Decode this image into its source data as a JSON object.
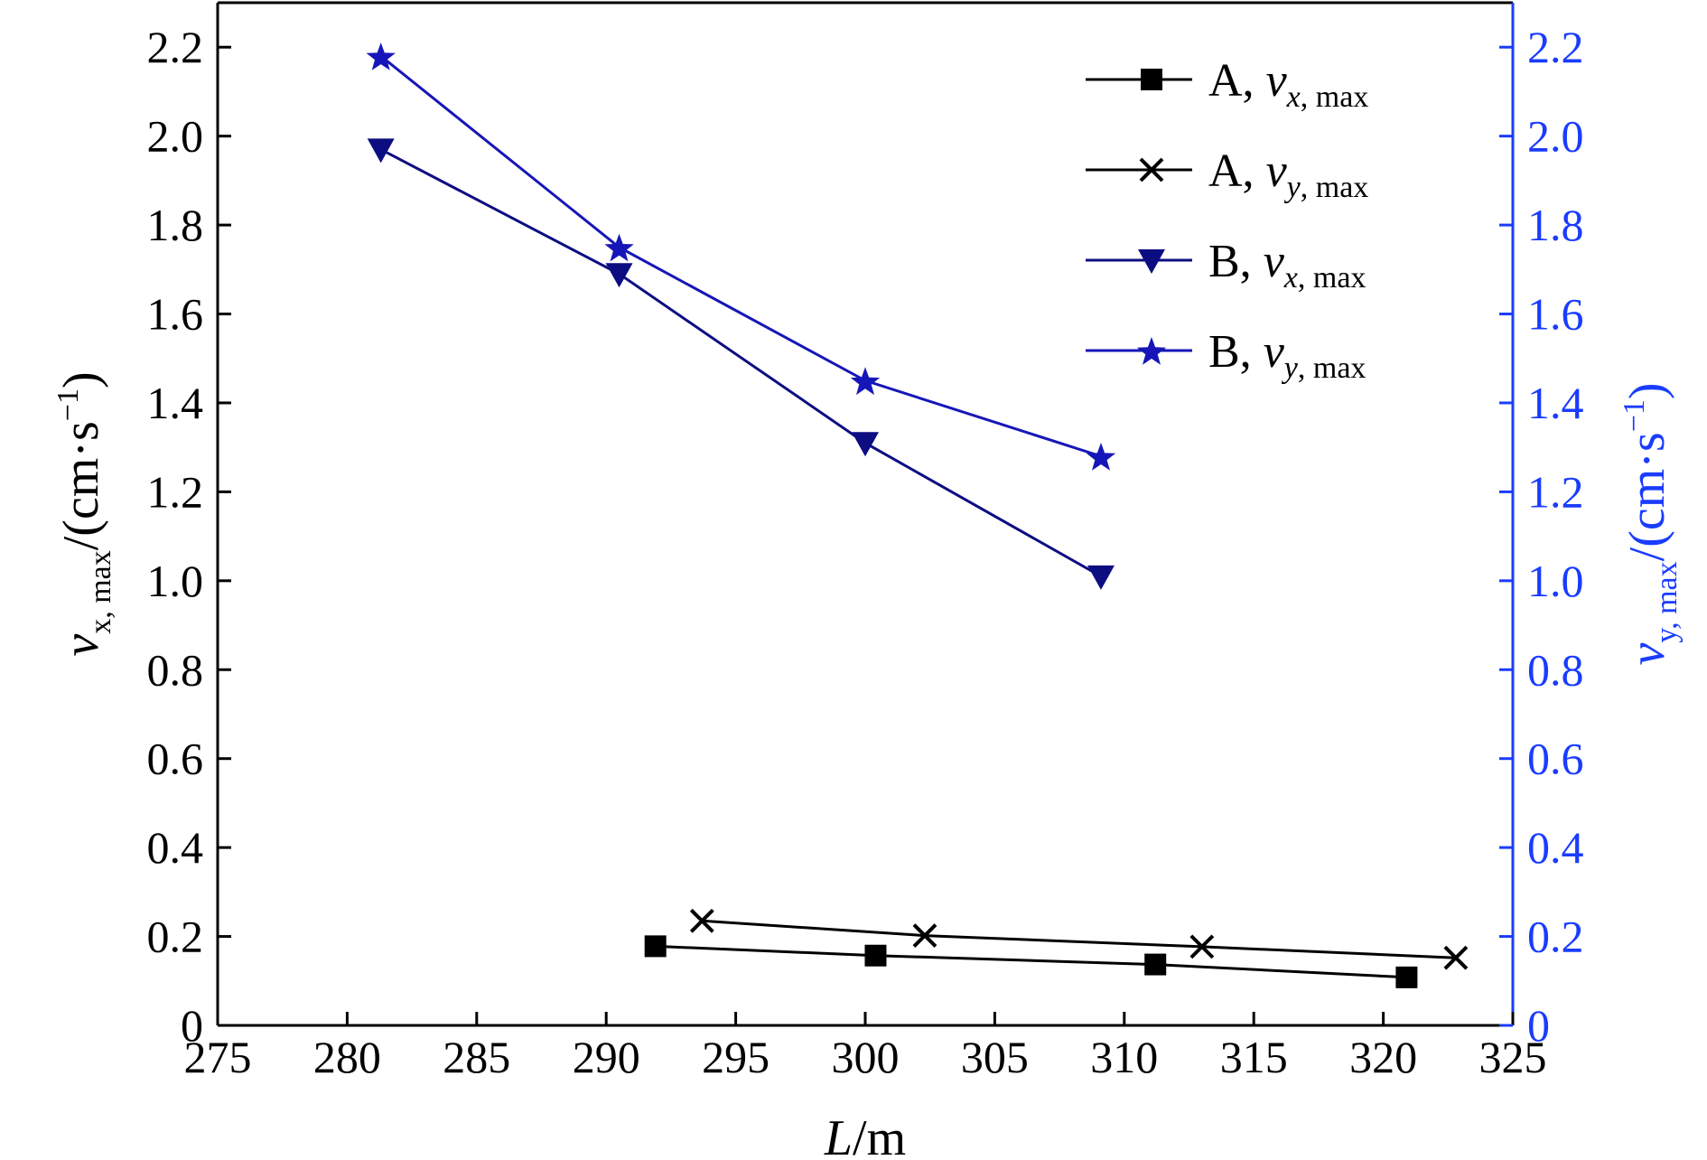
{
  "chart_data": {
    "type": "line",
    "title": "",
    "x_axis": {
      "label_italic": "L",
      "label_rest": "/m",
      "range": [
        275,
        325
      ],
      "ticks": [
        275,
        280,
        285,
        290,
        295,
        300,
        305,
        310,
        315,
        320,
        325
      ],
      "tick_labels": [
        "275",
        "280",
        "285",
        "290",
        "295",
        "300",
        "305",
        "310",
        "315",
        "320",
        "325"
      ]
    },
    "y_left": {
      "var": "v",
      "sub": "x, max",
      "unit": "/(cm·s",
      "exp": "−1",
      "close": ")",
      "range": [
        0,
        2.3
      ],
      "ticks": [
        0,
        0.2,
        0.4,
        0.6,
        0.8,
        1.0,
        1.2,
        1.4,
        1.6,
        1.8,
        2.0,
        2.2
      ],
      "tick_labels": [
        "0",
        "0.2",
        "0.4",
        "0.6",
        "0.8",
        "1.0",
        "1.2",
        "1.4",
        "1.6",
        "1.8",
        "2.0",
        "2.2"
      ],
      "color": "#000000"
    },
    "y_right": {
      "var": "v",
      "sub": "y, max",
      "unit": "/(cm·s",
      "exp": "−1",
      "close": ")",
      "range": [
        0,
        2.3
      ],
      "ticks": [
        0,
        0.2,
        0.4,
        0.6,
        0.8,
        1.0,
        1.2,
        1.4,
        1.6,
        1.8,
        2.0,
        2.2
      ],
      "tick_labels": [
        "0",
        "0.2",
        "0.4",
        "0.6",
        "0.8",
        "1.0",
        "1.2",
        "1.4",
        "1.6",
        "1.8",
        "2.0",
        "2.2"
      ],
      "color": "#1a3cff"
    },
    "legend_position": "top-right",
    "grid": false,
    "series": [
      {
        "id": "a-vx",
        "name_prefix": "A, ",
        "name_var": "v",
        "name_sub_italic": "x",
        "name_sub_rest": ", max",
        "axis": "left",
        "marker": "square",
        "color": "#000000",
        "points": [
          [
            291.9,
            0.178
          ],
          [
            300.4,
            0.157
          ],
          [
            311.2,
            0.137
          ],
          [
            320.9,
            0.108
          ]
        ]
      },
      {
        "id": "a-vy",
        "name_prefix": "A, ",
        "name_var": "v",
        "name_sub_italic": "y",
        "name_sub_rest": ", max",
        "axis": "right",
        "marker": "cross",
        "color": "#000000",
        "points": [
          [
            293.7,
            0.235
          ],
          [
            302.3,
            0.202
          ],
          [
            313.0,
            0.177
          ],
          [
            322.8,
            0.152
          ]
        ]
      },
      {
        "id": "b-vx",
        "name_prefix": "B, ",
        "name_var": "v",
        "name_sub_italic": "x",
        "name_sub_rest": ", max",
        "axis": "left",
        "marker": "triangle-down",
        "color": "#0d0d82",
        "points": [
          [
            281.3,
            1.97
          ],
          [
            290.5,
            1.69
          ],
          [
            300.0,
            1.31
          ],
          [
            309.1,
            1.01
          ]
        ]
      },
      {
        "id": "b-vy",
        "name_prefix": "B, ",
        "name_var": "v",
        "name_sub_italic": "y",
        "name_sub_rest": ", max",
        "axis": "right",
        "marker": "star",
        "color": "#1616b8",
        "points": [
          [
            281.3,
            2.18
          ],
          [
            290.5,
            1.75
          ],
          [
            300.0,
            1.45
          ],
          [
            309.1,
            1.28
          ]
        ]
      }
    ]
  }
}
